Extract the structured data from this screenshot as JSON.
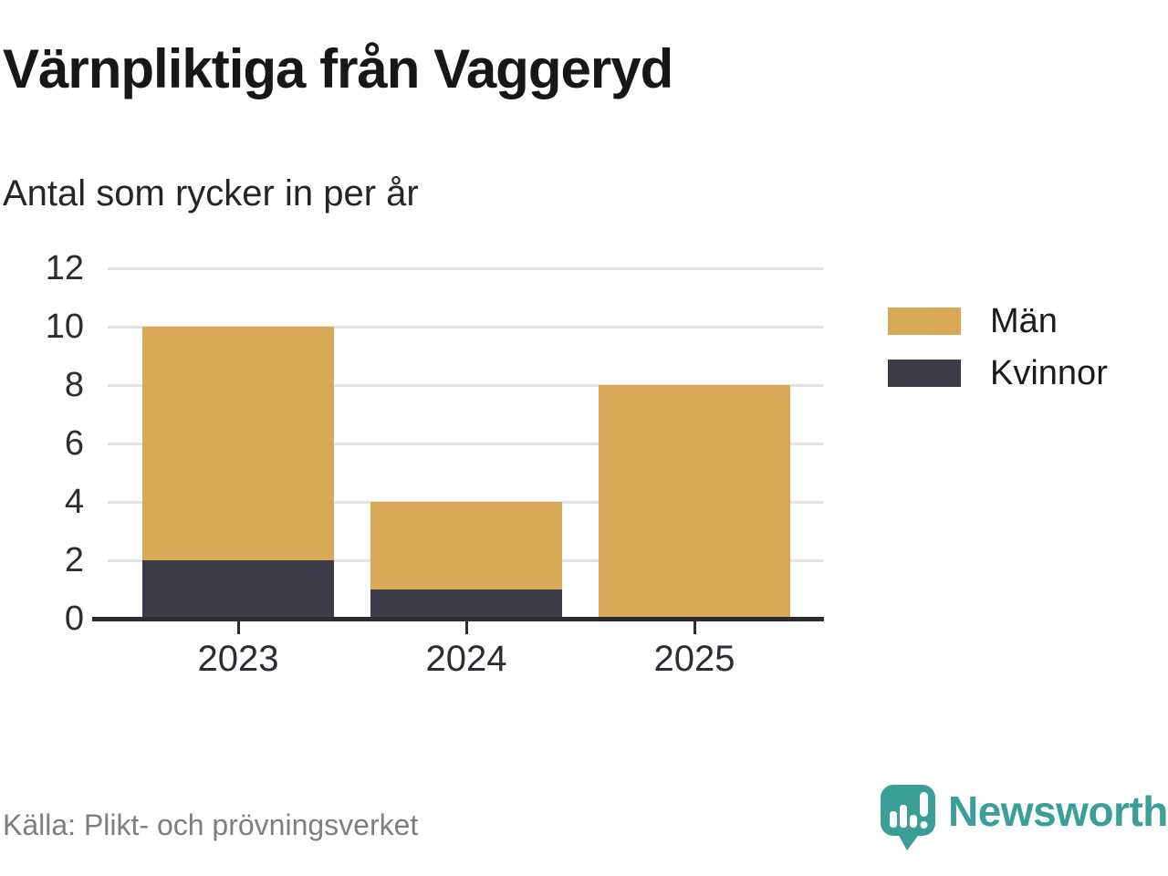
{
  "header": {
    "title": "Värnpliktiga från Vaggeryd",
    "subtitle": "Antal som rycker in per år"
  },
  "chart_data": {
    "type": "bar",
    "stacked": true,
    "categories": [
      "2023",
      "2024",
      "2025"
    ],
    "series": [
      {
        "name": "Män",
        "color": "#D8A957",
        "values": [
          8,
          3,
          8
        ]
      },
      {
        "name": "Kvinnor",
        "color": "#3E3C4A",
        "values": [
          2,
          1,
          0
        ]
      }
    ],
    "stack_bottom_to_top": [
      "Kvinnor",
      "Män"
    ],
    "stacked_totals": [
      10,
      4,
      8
    ],
    "title": "Värnpliktiga från Vaggeryd",
    "subtitle": "Antal som rycker in per år",
    "xlabel": "",
    "ylabel": "",
    "ylim": [
      0,
      12
    ],
    "yticks": [
      0,
      2,
      4,
      6,
      8,
      10,
      12
    ],
    "grid": true,
    "legend_position": "right"
  },
  "footer": {
    "source": "Källa: Plikt- och prövningsverket",
    "brand": "Newsworthy"
  },
  "colors": {
    "man": "#D8A957",
    "kvinnor": "#3E3C4A",
    "grid": "#E4E4E4",
    "axis": "#2D2C33",
    "title_text": "#171717",
    "muted_text": "#7E7E7E",
    "brand_teal": "#3B9E97"
  }
}
